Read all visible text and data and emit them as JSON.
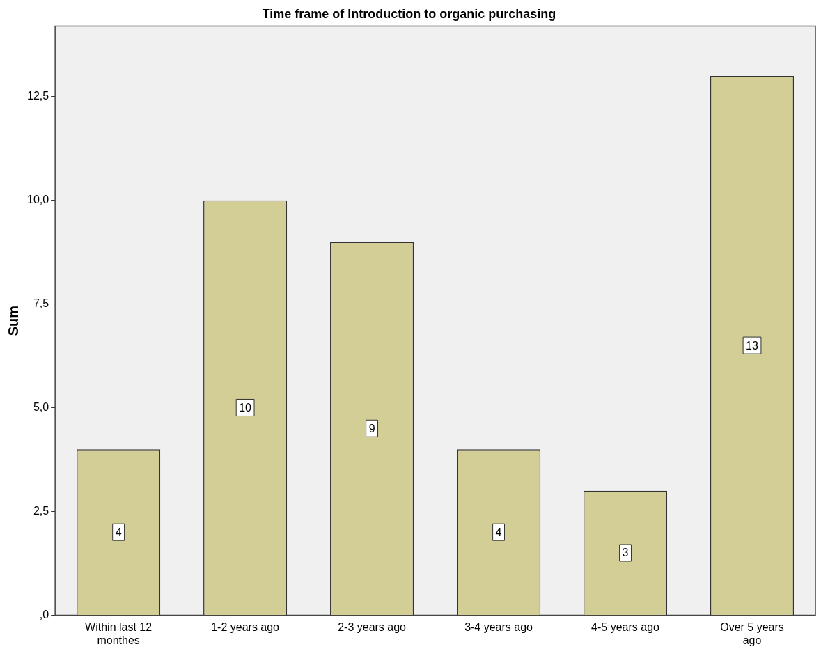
{
  "chart_data": {
    "type": "bar",
    "title": "Time frame of Introduction to organic purchasing",
    "ylabel": "Sum",
    "categories": [
      "Within last 12 monthes",
      "1-2 years ago",
      "2-3 years ago",
      "3-4 years ago",
      "4-5 years ago",
      "Over 5 years ago"
    ],
    "values": [
      4,
      10,
      9,
      4,
      3,
      13
    ],
    "color": "#d3cd96",
    "ylim": [
      0,
      14.2
    ],
    "yticks": [
      {
        "value": 0,
        "label": ",0"
      },
      {
        "value": 2.5,
        "label": "2,5"
      },
      {
        "value": 5,
        "label": "5,0"
      },
      {
        "value": 7.5,
        "label": "7,5"
      },
      {
        "value": 10,
        "label": "10,0"
      },
      {
        "value": 12.5,
        "label": "12,5"
      }
    ],
    "grid": false,
    "legend": false,
    "data_labels": true
  }
}
